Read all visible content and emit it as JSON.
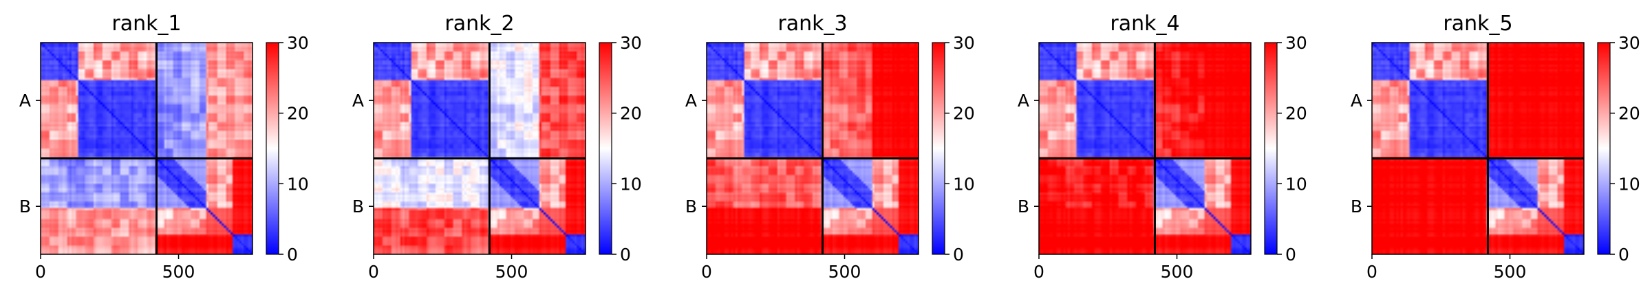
{
  "chart_data": {
    "type": "heatmap",
    "colormap": {
      "name": "bwr",
      "vmin": 0,
      "vmax": 30,
      "stops": [
        "#0000ff",
        "#ffffff",
        "#ff0000"
      ],
      "ticks": [
        "0",
        "10",
        "20",
        "30"
      ]
    },
    "xlim": [
      0,
      768
    ],
    "xticks": [
      {
        "value": 0,
        "label": "0"
      },
      {
        "value": 500,
        "label": "500"
      }
    ],
    "chain_boundary": 420,
    "chain_labels": [
      {
        "value": 210,
        "label": "A"
      },
      {
        "value": 594,
        "label": "B"
      }
    ],
    "line_color": "#000000",
    "panels": [
      {
        "title": "rank_1",
        "inter_chain_level": 0.2
      },
      {
        "title": "rank_2",
        "inter_chain_level": 0.35
      },
      {
        "title": "rank_3",
        "inter_chain_level": 0.7
      },
      {
        "title": "rank_4",
        "inter_chain_level": 0.85
      },
      {
        "title": "rank_5",
        "inter_chain_level": 1.0
      }
    ]
  }
}
